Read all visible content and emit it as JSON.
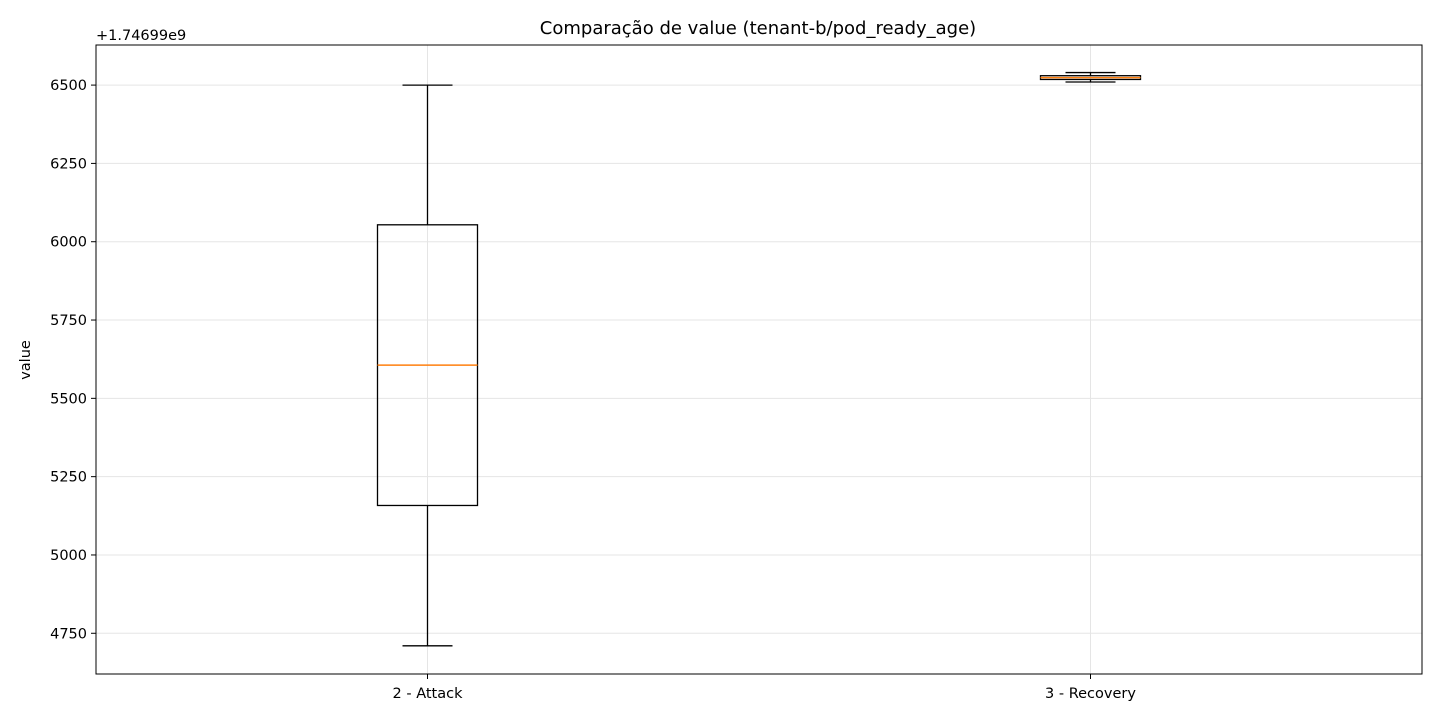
{
  "chart_data": {
    "type": "box",
    "title": "Comparação de value (tenant-b/pod_ready_age)",
    "xlabel": "",
    "ylabel": "value",
    "y_offset_label": "+1.74699e9",
    "ylim": [
      4620,
      6628
    ],
    "yticks": [
      4750,
      5000,
      5250,
      5500,
      5750,
      6000,
      6250,
      6500
    ],
    "grid": true,
    "categories": [
      "2 - Attack",
      "3 - Recovery"
    ],
    "boxes": [
      {
        "name": "2 - Attack",
        "whisker_low": 4710,
        "q1": 5158,
        "median": 5606,
        "q3": 6054,
        "whisker_high": 6500
      },
      {
        "name": "3 - Recovery",
        "whisker_low": 6510,
        "q1": 6518,
        "median": 6524,
        "q3": 6530,
        "whisker_high": 6540
      }
    ],
    "colors": {
      "box": "#000000",
      "median": "#ff7f0e",
      "grid": "#e5e5e5"
    }
  }
}
